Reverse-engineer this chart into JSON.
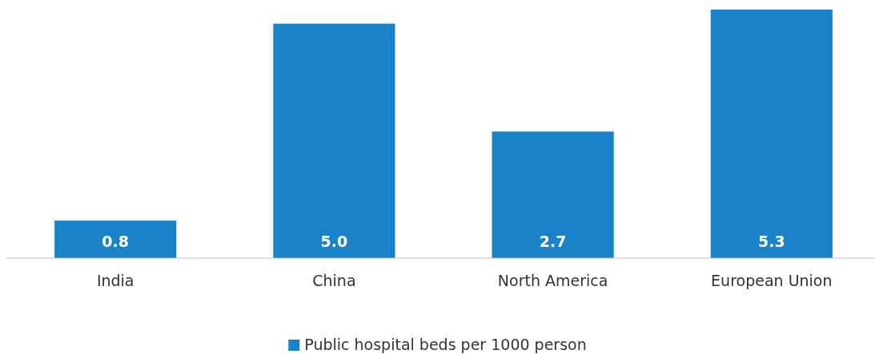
{
  "chart_data": {
    "type": "bar",
    "categories": [
      "India",
      "China",
      "North America",
      "European Union"
    ],
    "series": [
      {
        "name": "Public hospital beds per 1000 person",
        "color": "#1a82c8",
        "values": [
          0.8,
          5.0,
          2.7,
          5.3
        ],
        "value_labels": [
          "0.8",
          "5.0",
          "2.7",
          "5.3"
        ]
      }
    ],
    "legend": "bottom"
  }
}
